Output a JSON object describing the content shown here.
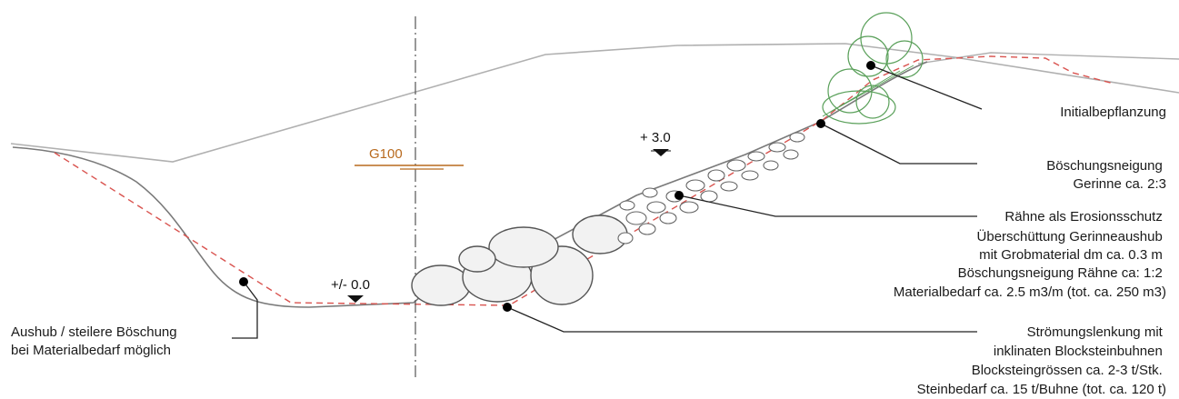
{
  "colors": {
    "terrain_line": "#9a9a9a",
    "design_line": "#d9534f",
    "leader": "#222222",
    "g100": "#b86a1e",
    "vegetation": "#5aa05a",
    "stones": "#555555"
  },
  "levels": {
    "g100": "G100",
    "upper": "+ 3.0",
    "zero": "+/- 0.0"
  },
  "annotations": {
    "initialbepflanzung": [
      "Initialbepflanzung"
    ],
    "boeschungsneigung": [
      "Böschungsneigung",
      "Gerinne ca. 2:3"
    ],
    "raehne": [
      "Rähne als Erosionsschutz",
      "Überschüttung Gerinneaushub",
      "mit Grobmaterial dm ca. 0.3 m",
      "Böschungsneigung Rähne ca: 1:2",
      "Materialbedarf ca. 2.5 m3/m (tot. ca. 250 m3)"
    ],
    "stroemung": [
      "Strömungslenkung mit",
      "inklinaten Blocksteinbuhnen",
      "Blocksteingrössen ca. 2-3 t/Stk.",
      "Steinbedarf ca. 15 t/Buhne (tot. ca. 120 t)"
    ],
    "aushub": [
      "Aushub / steilere Böschung",
      "bei Materialbedarf möglich"
    ]
  }
}
